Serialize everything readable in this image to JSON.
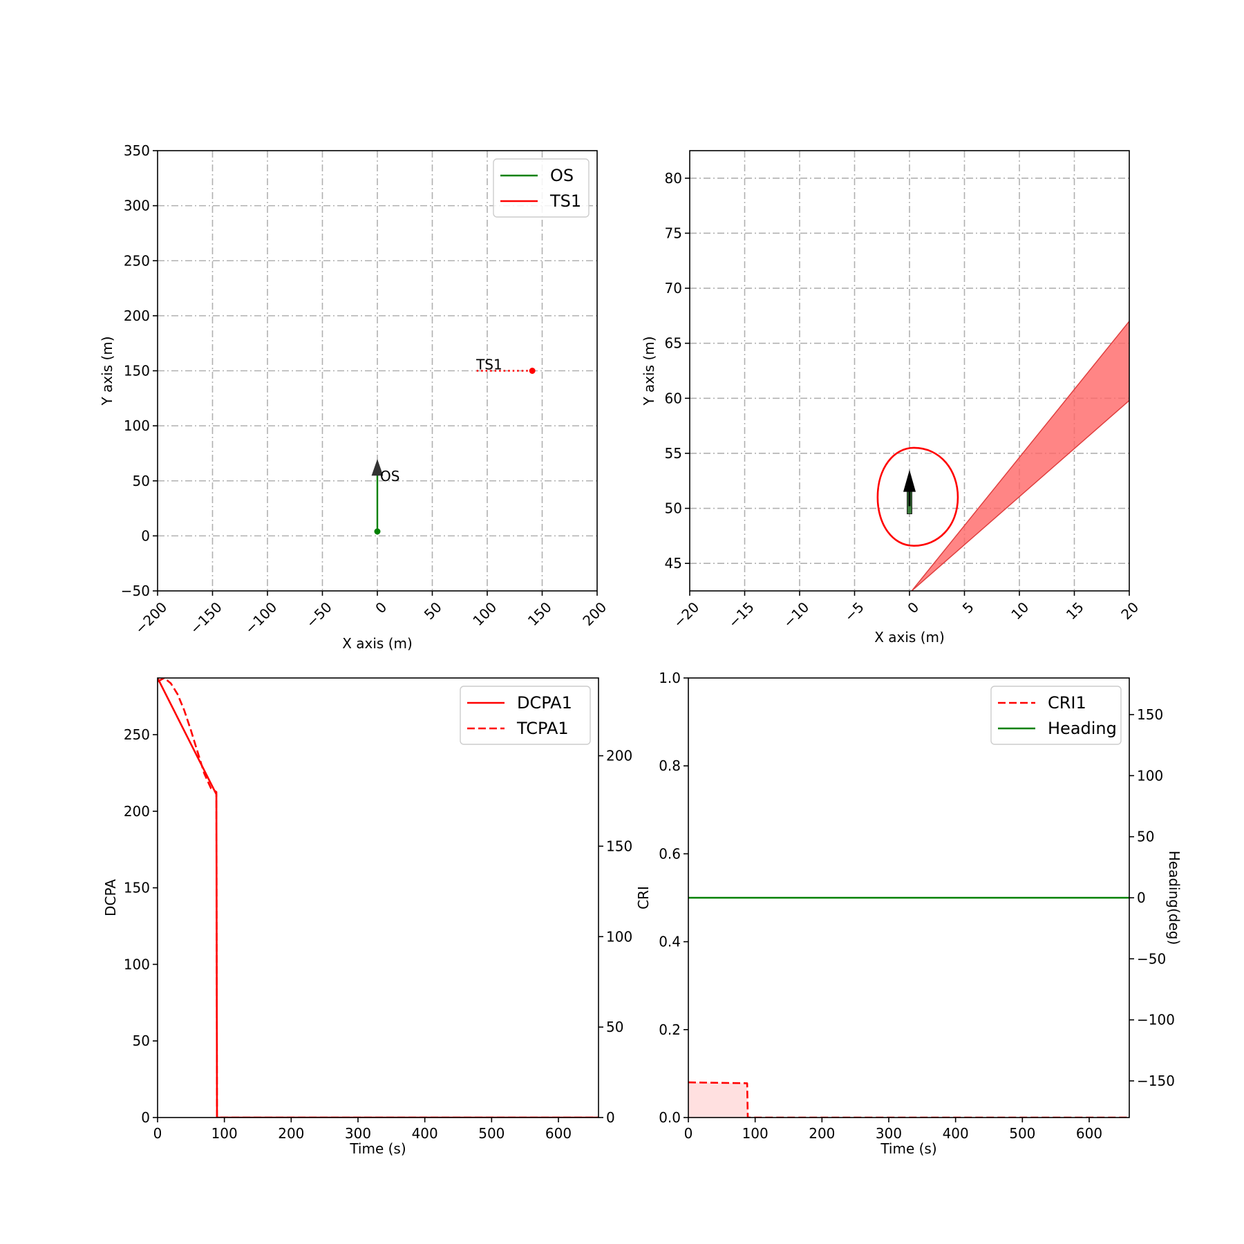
{
  "chart_data": [
    {
      "type": "line",
      "panel": "trajectory-overview",
      "xlabel": "X axis (m)",
      "ylabel": "Y axis (m)",
      "xlim": [
        -200,
        200
      ],
      "ylim": [
        -50,
        350
      ],
      "xticks": [
        -200,
        -150,
        -100,
        -50,
        0,
        50,
        100,
        150,
        200
      ],
      "yticks": [
        -50,
        0,
        50,
        100,
        150,
        200,
        250,
        300,
        350
      ],
      "grid": true,
      "legend": "top-right",
      "series": [
        {
          "name": "OS",
          "color": "#008000",
          "style": "solid",
          "x": [
            0,
            0
          ],
          "y": [
            4,
            55
          ]
        },
        {
          "name": "TS1",
          "color": "#ff0000",
          "style": "dotted",
          "x": [
            141,
            90
          ],
          "y": [
            150,
            150
          ]
        }
      ],
      "annotations": [
        {
          "text": "OS",
          "x": 0,
          "y": 50
        },
        {
          "text": "TS1",
          "x": 90,
          "y": 150
        }
      ]
    },
    {
      "type": "area",
      "panel": "zoomed-view",
      "xlabel": "X axis (m)",
      "ylabel": "Y axis (m)",
      "xlim": [
        -20,
        20
      ],
      "ylim": [
        42.5,
        82.5
      ],
      "xticks": [
        -20,
        -15,
        -10,
        -5,
        0,
        5,
        10,
        15,
        20
      ],
      "yticks": [
        45,
        50,
        55,
        60,
        65,
        70,
        75,
        80
      ],
      "grid": true,
      "ship_domain": {
        "cx": 0.4,
        "cy": 51,
        "rx_left": 3.3,
        "rx_right": 4,
        "ry_top": 4.5,
        "ry_bottom": 4.4,
        "color": "#ff0000"
      },
      "collision_cone": {
        "color": "#ff6666",
        "upper": [
          [
            0.2,
            42.5
          ],
          [
            20,
            67.0
          ]
        ],
        "lower": [
          [
            0.2,
            42.5
          ],
          [
            20,
            59.8
          ]
        ]
      },
      "os_heading_deg": 0
    },
    {
      "type": "line",
      "panel": "dcpa-tcpa",
      "xlabel": "Time (s)",
      "ylabel": "DCPA",
      "xlim": [
        0,
        660
      ],
      "ylim": [
        0,
        287
      ],
      "y2lim": [
        0,
        243
      ],
      "xticks": [
        0,
        100,
        200,
        300,
        400,
        500,
        600
      ],
      "yticks": [
        0,
        50,
        100,
        150,
        200,
        250
      ],
      "y2ticks": [
        0,
        50,
        100,
        150,
        200
      ],
      "grid": false,
      "legend": "top-right",
      "series": [
        {
          "name": "DCPA1",
          "color": "#ff0000",
          "style": "solid",
          "axis": "left",
          "x": [
            0,
            88,
            88,
            89,
            660
          ],
          "y": [
            287,
            211,
            211,
            0,
            0
          ]
        },
        {
          "name": "TCPA1",
          "color": "#ff0000",
          "style": "dashed",
          "axis": "right",
          "x": [
            0,
            10,
            20,
            30,
            40,
            50,
            60,
            70,
            80,
            88,
            89,
            660
          ],
          "y": [
            241,
            243,
            240,
            234,
            225,
            214,
            202,
            190,
            182,
            180,
            0,
            0
          ]
        }
      ]
    },
    {
      "type": "line",
      "panel": "cri-heading",
      "xlabel": "Time (s)",
      "ylabel": "CRI",
      "y2label": "Heading(deg)",
      "xlim": [
        0,
        660
      ],
      "ylim": [
        0,
        1.0
      ],
      "y2lim": [
        -180,
        180
      ],
      "xticks": [
        0,
        100,
        200,
        300,
        400,
        500,
        600
      ],
      "yticks": [
        0.0,
        0.2,
        0.4,
        0.6,
        0.8,
        1.0
      ],
      "y2ticks": [
        -150,
        -100,
        -50,
        0,
        50,
        100,
        150
      ],
      "grid": false,
      "legend": "top-right",
      "series": [
        {
          "name": "CRI1",
          "color": "#ff0000",
          "style": "dashed",
          "axis": "left",
          "fill": true,
          "x": [
            0,
            88,
            89,
            660
          ],
          "y": [
            0.08,
            0.078,
            0,
            0
          ]
        },
        {
          "name": "Heading",
          "color": "#008000",
          "style": "solid",
          "axis": "right",
          "x": [
            0,
            660
          ],
          "y": [
            0,
            0
          ]
        }
      ]
    }
  ]
}
